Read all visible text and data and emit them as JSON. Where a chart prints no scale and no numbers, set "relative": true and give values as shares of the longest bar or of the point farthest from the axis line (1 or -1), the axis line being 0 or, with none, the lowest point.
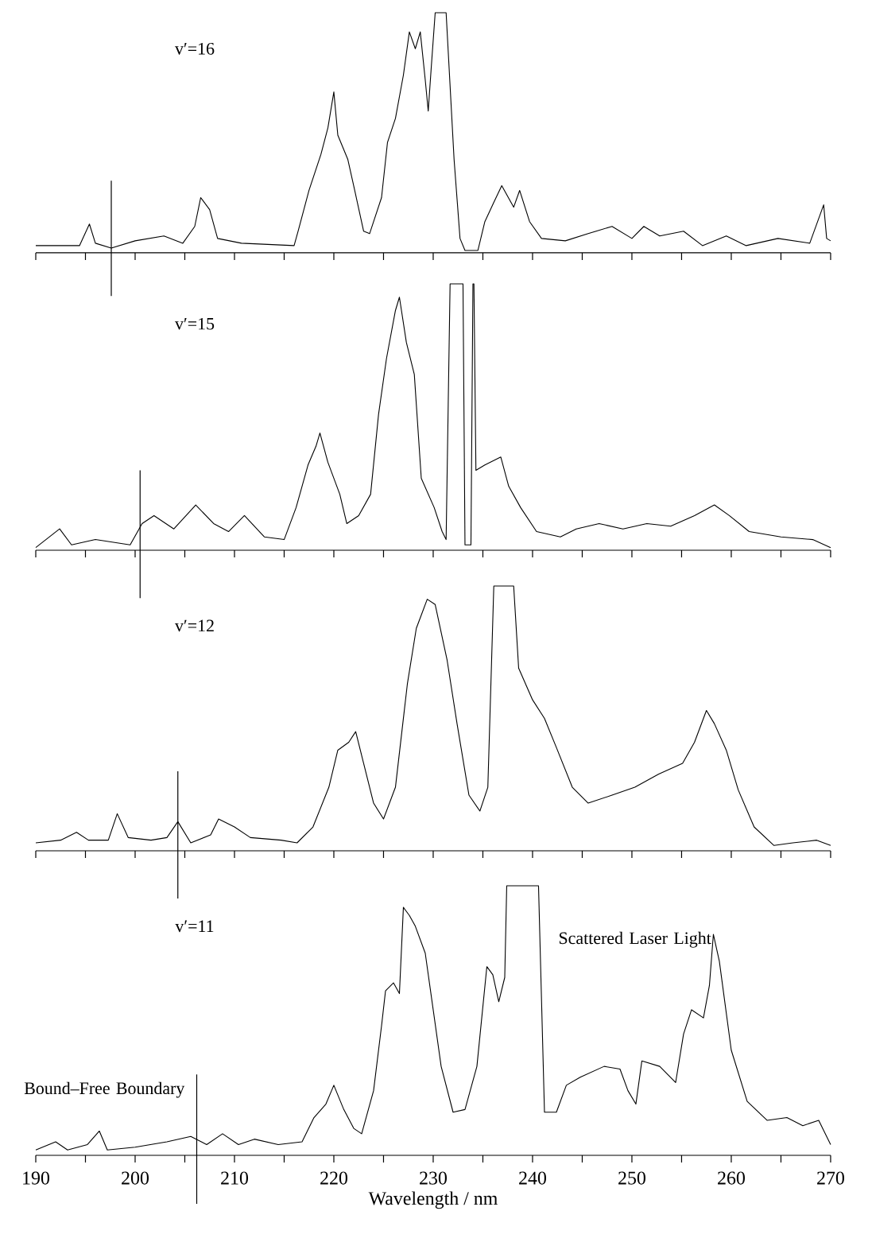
{
  "chart_data": [
    {
      "type": "line",
      "relative": true,
      "color": "#000000",
      "xlim": [
        190,
        270
      ],
      "tick_labels": false,
      "xticks": [
        190,
        195,
        200,
        205,
        210,
        215,
        220,
        225,
        230,
        235,
        240,
        245,
        250,
        255,
        260,
        265,
        270
      ],
      "annotations": [
        "v′=16"
      ],
      "ref_lines": [
        {
          "axis": "x",
          "value": 197.6
        }
      ],
      "x": [
        190,
        194.4,
        195.4,
        196.0,
        197.6,
        200,
        202.9,
        204.8,
        206.0,
        206.6,
        207.5,
        208.3,
        210.7,
        216.0,
        216.4,
        217.5,
        218.7,
        219.4,
        220.0,
        220.4,
        221.4,
        222.1,
        223.0,
        223.6,
        224.8,
        225.4,
        226.2,
        227.0,
        227.6,
        228.2,
        228.7,
        229.2,
        229.5,
        229.8,
        230.2,
        231.3,
        232.1,
        232.7,
        233.2,
        234.5,
        235.2,
        236.1,
        236.9,
        238.1,
        238.7,
        239.7,
        240.9,
        243.3,
        245.6,
        246.4,
        248.0,
        250.0,
        251.2,
        252.8,
        255.2,
        257.1,
        259.5,
        261.5,
        264.7,
        267.9,
        269.3,
        269.6,
        270
      ],
      "values": [
        0.03,
        0.03,
        0.12,
        0.04,
        0.02,
        0.05,
        0.07,
        0.04,
        0.11,
        0.23,
        0.18,
        0.06,
        0.04,
        0.03,
        0.09,
        0.26,
        0.41,
        0.52,
        0.67,
        0.49,
        0.39,
        0.26,
        0.09,
        0.08,
        0.23,
        0.46,
        0.56,
        0.74,
        0.92,
        0.85,
        0.92,
        0.72,
        0.59,
        0.77,
        1.0,
        1.0,
        0.39,
        0.06,
        0.01,
        0.01,
        0.13,
        0.21,
        0.28,
        0.19,
        0.26,
        0.13,
        0.06,
        0.05,
        0.08,
        0.09,
        0.11,
        0.06,
        0.11,
        0.07,
        0.09,
        0.03,
        0.07,
        0.03,
        0.06,
        0.04,
        0.2,
        0.06,
        0.05
      ]
    },
    {
      "type": "line",
      "relative": true,
      "color": "#000000",
      "xlim": [
        190,
        270
      ],
      "tick_labels": false,
      "xticks": [
        190,
        195,
        200,
        205,
        210,
        215,
        220,
        225,
        230,
        235,
        240,
        245,
        250,
        255,
        260,
        265,
        270
      ],
      "annotations": [
        "v′=15"
      ],
      "ref_lines": [
        {
          "axis": "x",
          "value": 200.5
        }
      ],
      "x": [
        190,
        192.4,
        193.6,
        196,
        199.5,
        200.7,
        201.9,
        203.9,
        206.1,
        207.9,
        209.4,
        211.0,
        213.0,
        215.0,
        216.2,
        217.4,
        218.2,
        218.6,
        219.4,
        220.6,
        221.3,
        222.5,
        223.7,
        224.5,
        225.3,
        226.2,
        226.6,
        227.3,
        228.1,
        228.8,
        230.1,
        230.9,
        231.3,
        231.7,
        233.0,
        233.2,
        233.8,
        234.0,
        234.1,
        234.3,
        235.2,
        236.8,
        237.6,
        238.8,
        240.4,
        242.8,
        244.4,
        246.7,
        249.1,
        251.5,
        253.9,
        256.3,
        258.3,
        259.8,
        261.8,
        265.0,
        268.2,
        270
      ],
      "values": [
        0.01,
        0.08,
        0.02,
        0.04,
        0.02,
        0.1,
        0.13,
        0.08,
        0.17,
        0.1,
        0.07,
        0.13,
        0.05,
        0.04,
        0.16,
        0.32,
        0.39,
        0.44,
        0.33,
        0.21,
        0.1,
        0.13,
        0.21,
        0.51,
        0.72,
        0.9,
        0.95,
        0.78,
        0.66,
        0.27,
        0.16,
        0.07,
        0.04,
        1.0,
        1.0,
        0.02,
        0.02,
        1.0,
        1.0,
        0.3,
        0.32,
        0.35,
        0.24,
        0.16,
        0.07,
        0.05,
        0.08,
        0.1,
        0.08,
        0.1,
        0.09,
        0.13,
        0.17,
        0.13,
        0.07,
        0.05,
        0.04,
        0.01
      ]
    },
    {
      "type": "line",
      "relative": true,
      "color": "#000000",
      "xlim": [
        190,
        270
      ],
      "tick_labels": false,
      "xticks": [
        190,
        195,
        200,
        205,
        210,
        215,
        220,
        225,
        230,
        235,
        240,
        245,
        250,
        255,
        260,
        265,
        270
      ],
      "annotations": [
        "v′=12"
      ],
      "ref_lines": [
        {
          "axis": "x",
          "value": 204.3
        }
      ],
      "x": [
        190,
        192.5,
        194.1,
        195.3,
        197.3,
        198.2,
        199.3,
        201.6,
        203.2,
        204.3,
        205.6,
        207.6,
        208.4,
        210.0,
        211.6,
        214.7,
        216.3,
        217.9,
        219.5,
        220.4,
        221.5,
        222.2,
        223.0,
        224.0,
        225.0,
        226.2,
        227.4,
        228.3,
        229.4,
        230.2,
        231.4,
        232.4,
        233.6,
        234.7,
        235.5,
        236.1,
        238.1,
        238.6,
        240.0,
        241.2,
        242.4,
        244.0,
        245.6,
        248.0,
        250.3,
        252.7,
        255.1,
        256.3,
        257.5,
        258.3,
        259.5,
        260.7,
        262.3,
        264.3,
        266.2,
        268.6,
        270
      ],
      "values": [
        0.03,
        0.04,
        0.07,
        0.04,
        0.04,
        0.14,
        0.05,
        0.04,
        0.05,
        0.11,
        0.03,
        0.06,
        0.12,
        0.09,
        0.05,
        0.04,
        0.03,
        0.09,
        0.24,
        0.38,
        0.41,
        0.45,
        0.33,
        0.18,
        0.12,
        0.24,
        0.63,
        0.84,
        0.95,
        0.93,
        0.72,
        0.48,
        0.21,
        0.15,
        0.24,
        1.0,
        1.0,
        0.69,
        0.57,
        0.5,
        0.39,
        0.24,
        0.18,
        0.21,
        0.24,
        0.29,
        0.33,
        0.41,
        0.53,
        0.48,
        0.38,
        0.23,
        0.09,
        0.02,
        0.03,
        0.04,
        0.02
      ]
    },
    {
      "type": "line",
      "relative": true,
      "color": "#000000",
      "xlim": [
        190,
        270
      ],
      "tick_labels": "x",
      "xlabel": "Wavelength / nm",
      "xticks": [
        190,
        {
          "value": 195,
          "label": null
        },
        200,
        {
          "value": 205,
          "label": null
        },
        210,
        {
          "value": 215,
          "label": null
        },
        220,
        {
          "value": 225,
          "label": null
        },
        230,
        {
          "value": 235,
          "label": null
        },
        240,
        {
          "value": 245,
          "label": null
        },
        250,
        {
          "value": 255,
          "label": null
        },
        260,
        {
          "value": 265,
          "label": null
        },
        270
      ],
      "annotations": [
        "v′=11",
        "Scattered Laser Light"
      ],
      "ref_lines": [
        {
          "axis": "x",
          "value": 206.2,
          "label": "Bound–Free Boundary"
        }
      ],
      "x": [
        190,
        192,
        193.2,
        195.2,
        196.4,
        197.2,
        200,
        203.2,
        205.6,
        207.2,
        208.8,
        210.4,
        212,
        214.4,
        216.8,
        218,
        219.2,
        220,
        221,
        222,
        222.8,
        224,
        224.8,
        225.2,
        226,
        226.6,
        227,
        227.6,
        228.2,
        229.2,
        230,
        230.8,
        232,
        233.2,
        234.4,
        235.4,
        236,
        236.6,
        237.2,
        237.4,
        240.6,
        241.2,
        242.4,
        243.4,
        244.8,
        247.2,
        248.8,
        249.6,
        250.4,
        251,
        252.8,
        254.4,
        255.2,
        256,
        257.2,
        257.8,
        258.2,
        258.8,
        260,
        261.6,
        263.6,
        265.6,
        267.2,
        268.8,
        270
      ],
      "values": [
        0.02,
        0.05,
        0.02,
        0.04,
        0.09,
        0.02,
        0.03,
        0.05,
        0.07,
        0.04,
        0.08,
        0.04,
        0.06,
        0.04,
        0.05,
        0.14,
        0.19,
        0.26,
        0.17,
        0.1,
        0.08,
        0.24,
        0.48,
        0.61,
        0.64,
        0.6,
        0.92,
        0.89,
        0.85,
        0.75,
        0.54,
        0.33,
        0.16,
        0.17,
        0.33,
        0.7,
        0.67,
        0.57,
        0.66,
        1.0,
        1.0,
        0.16,
        0.16,
        0.26,
        0.29,
        0.33,
        0.32,
        0.24,
        0.19,
        0.35,
        0.33,
        0.27,
        0.45,
        0.54,
        0.51,
        0.63,
        0.82,
        0.72,
        0.39,
        0.2,
        0.13,
        0.14,
        0.11,
        0.13,
        0.04
      ]
    }
  ]
}
